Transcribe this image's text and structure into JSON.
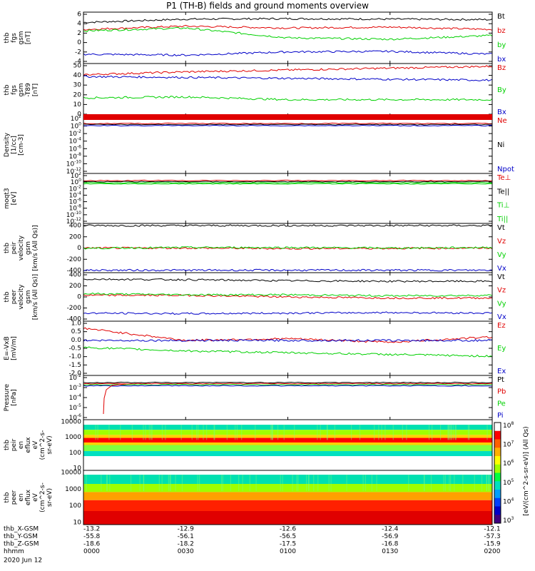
{
  "title": "P1 (TH-B) fields and ground moments overview",
  "colors": {
    "black": "#000000",
    "red": "#e00000",
    "green": "#00d000",
    "blue": "#0000c8"
  },
  "x_ticks": [
    "0000",
    "0030",
    "0100",
    "0130",
    "0200"
  ],
  "footer": {
    "rows": [
      {
        "label": "thb_X-GSM",
        "values": [
          "-13.2",
          "-12.9",
          "-12.6",
          "-12.4",
          "-12.1"
        ]
      },
      {
        "label": "thb_Y-GSM",
        "values": [
          "-55.8",
          "-56.1",
          "-56.5",
          "-56.9",
          "-57.3"
        ]
      },
      {
        "label": "thb_Z-GSM",
        "values": [
          "-18.6",
          "-18.2",
          "-17.5",
          "-16.8",
          "-15.9"
        ]
      },
      {
        "label": "hhmm",
        "values": [
          "0000",
          "0030",
          "0100",
          "0130",
          "0200"
        ]
      }
    ],
    "date": "2020 Jun 12"
  },
  "colorbar": {
    "ticks": [
      "10^8",
      "10^7",
      "10^6",
      "10^5",
      "10^4",
      "10^3"
    ],
    "label": "[eV/(cm^2-s-sr-eV)] (All Qs)"
  },
  "chart_data": [
    {
      "type": "line",
      "ylabel": [
        "thb",
        "fgs",
        "gsm",
        "[nT]"
      ],
      "ylim": [
        -5,
        6
      ],
      "yticks": [
        "6",
        "4",
        "2",
        "0",
        "-2",
        "-4"
      ],
      "series": [
        {
          "name": "Bt",
          "color": "#000000",
          "level": [
            3.8,
            4.5,
            4.6,
            4.5,
            4.4
          ]
        },
        {
          "name": "bz",
          "color": "#e00000",
          "level": [
            2.3,
            3.0,
            2.6,
            2.8,
            2.3
          ]
        },
        {
          "name": "by",
          "color": "#00d000",
          "level": [
            2.0,
            2.6,
            0.5,
            0.2,
            1.0
          ]
        },
        {
          "name": "bx",
          "color": "#0000c8",
          "level": [
            -3.0,
            -3.2,
            -2.5,
            -2.4,
            -3.0
          ]
        }
      ]
    },
    {
      "type": "line",
      "ylabel": [
        "thb",
        "fgs",
        "gsm",
        "-T89",
        "[nT]"
      ],
      "ylim": [
        -5,
        52
      ],
      "yticks": [
        "50",
        "40",
        "30",
        "20",
        "10",
        "0"
      ],
      "series": [
        {
          "name": "Bz",
          "color": "#e00000",
          "level": [
            40,
            43,
            45,
            47,
            49
          ]
        },
        {
          "name": "By",
          "color": "#00d000",
          "level": [
            15,
            16,
            13,
            13,
            13
          ]
        },
        {
          "name": "Bx",
          "color": "#0000c8",
          "level": [
            38,
            37,
            36,
            35,
            34
          ]
        }
      ]
    },
    {
      "type": "line",
      "ylabel": [
        "Density",
        "[1/cc]",
        "[cm-3]"
      ],
      "yticks": [
        "10^2",
        "10^0",
        "10^-2",
        "10^-4",
        "10^-6",
        "10^-8",
        "10^-10",
        "10^-12"
      ],
      "series": [
        {
          "name": "Ne",
          "color": "#e00000"
        },
        {
          "name": "Ni",
          "color": "#000000"
        },
        {
          "name": "Npot",
          "color": "#0000c8"
        }
      ]
    },
    {
      "type": "line",
      "ylabel": [
        "moqt3",
        "[eV]"
      ],
      "yticks": [
        "10^2",
        "10^0",
        "10^-2",
        "10^-4",
        "10^-6",
        "10^-8",
        "10^-10",
        "10^-12"
      ],
      "series": [
        {
          "name": "Te⊥",
          "color": "#e00000"
        },
        {
          "name": "Te||",
          "color": "#000000"
        },
        {
          "name": "Ti⊥",
          "color": "#00d000"
        },
        {
          "name": "Ti||",
          "color": "#00d000"
        }
      ]
    },
    {
      "type": "line",
      "ylabel": [
        "thb",
        "peir",
        "velocity",
        "gsm",
        "[km/s (All Qs)]"
      ],
      "ylim": [
        -450,
        450
      ],
      "yticks": [
        "400",
        "200",
        "0",
        "-200",
        "-400"
      ],
      "series": [
        {
          "name": "Vt",
          "color": "#000000",
          "level": [
            410,
            410,
            410,
            410,
            410
          ]
        },
        {
          "name": "Vz",
          "color": "#e00000",
          "level": [
            0,
            0,
            -10,
            -5,
            0
          ]
        },
        {
          "name": "Vy",
          "color": "#00d000",
          "level": [
            -5,
            10,
            10,
            0,
            10
          ]
        },
        {
          "name": "Vx",
          "color": "#0000c8",
          "level": [
            -405,
            -405,
            -405,
            -405,
            -405
          ]
        }
      ]
    },
    {
      "type": "line",
      "ylabel": [
        "thb",
        "peer",
        "velocity",
        "gsm",
        "[km/s (All Qs)]"
      ],
      "ylim": [
        -450,
        450
      ],
      "yticks": [
        "400",
        "200",
        "0",
        "-200",
        "-400"
      ],
      "series": [
        {
          "name": "Vt",
          "color": "#000000",
          "level": [
            330,
            320,
            300,
            290,
            290
          ]
        },
        {
          "name": "Vz",
          "color": "#e00000",
          "level": [
            30,
            30,
            0,
            -20,
            -20
          ]
        },
        {
          "name": "Vy",
          "color": "#00d000",
          "level": [
            60,
            40,
            40,
            20,
            30
          ]
        },
        {
          "name": "Vx",
          "color": "#0000c8",
          "level": [
            -300,
            -310,
            -300,
            -290,
            -300
          ]
        }
      ]
    },
    {
      "type": "line",
      "ylabel": [
        "E=-VxB",
        "[mV/m]"
      ],
      "ylim": [
        -2.0,
        1.1
      ],
      "yticks": [
        "1.0",
        "0.5",
        "0.0",
        "-0.5",
        "-1.0",
        "-1.5",
        "-2.0"
      ],
      "series": [
        {
          "name": "Ez",
          "color": "#e00000",
          "level": [
            0.7,
            0.0,
            0.1,
            -0.1,
            0.2
          ]
        },
        {
          "name": "Ey",
          "color": "#00d000",
          "level": [
            -0.4,
            -0.6,
            -0.7,
            -0.8,
            -0.9
          ]
        },
        {
          "name": "Ex",
          "color": "#0000c8",
          "level": [
            0.0,
            0.0,
            0.0,
            0.0,
            0.0
          ]
        }
      ]
    },
    {
      "type": "line",
      "ylabel": [
        "Pressure",
        "[nPa]"
      ],
      "yticks": [
        "10^-2",
        "10^-3",
        "10^-4",
        "10^-5",
        "10^-6"
      ],
      "series": [
        {
          "name": "Pt",
          "color": "#000000"
        },
        {
          "name": "Pb",
          "color": "#e00000"
        },
        {
          "name": "Pe",
          "color": "#00d000"
        },
        {
          "name": "Pi",
          "color": "#0000c8"
        }
      ]
    },
    {
      "type": "heatmap",
      "ylabel": [
        "thb",
        "peir",
        "en",
        "eflux",
        "eV",
        "(cm^2-s-",
        "sr-eV)"
      ],
      "yticks": [
        "10000",
        "1000",
        "100",
        "10"
      ]
    },
    {
      "type": "heatmap",
      "ylabel": [
        "thb",
        "peer",
        "en",
        "eflux",
        "eV",
        "(cm^2-s-",
        "sr-eV)"
      ],
      "yticks": [
        "10000",
        "1000",
        "100",
        "10"
      ]
    }
  ]
}
